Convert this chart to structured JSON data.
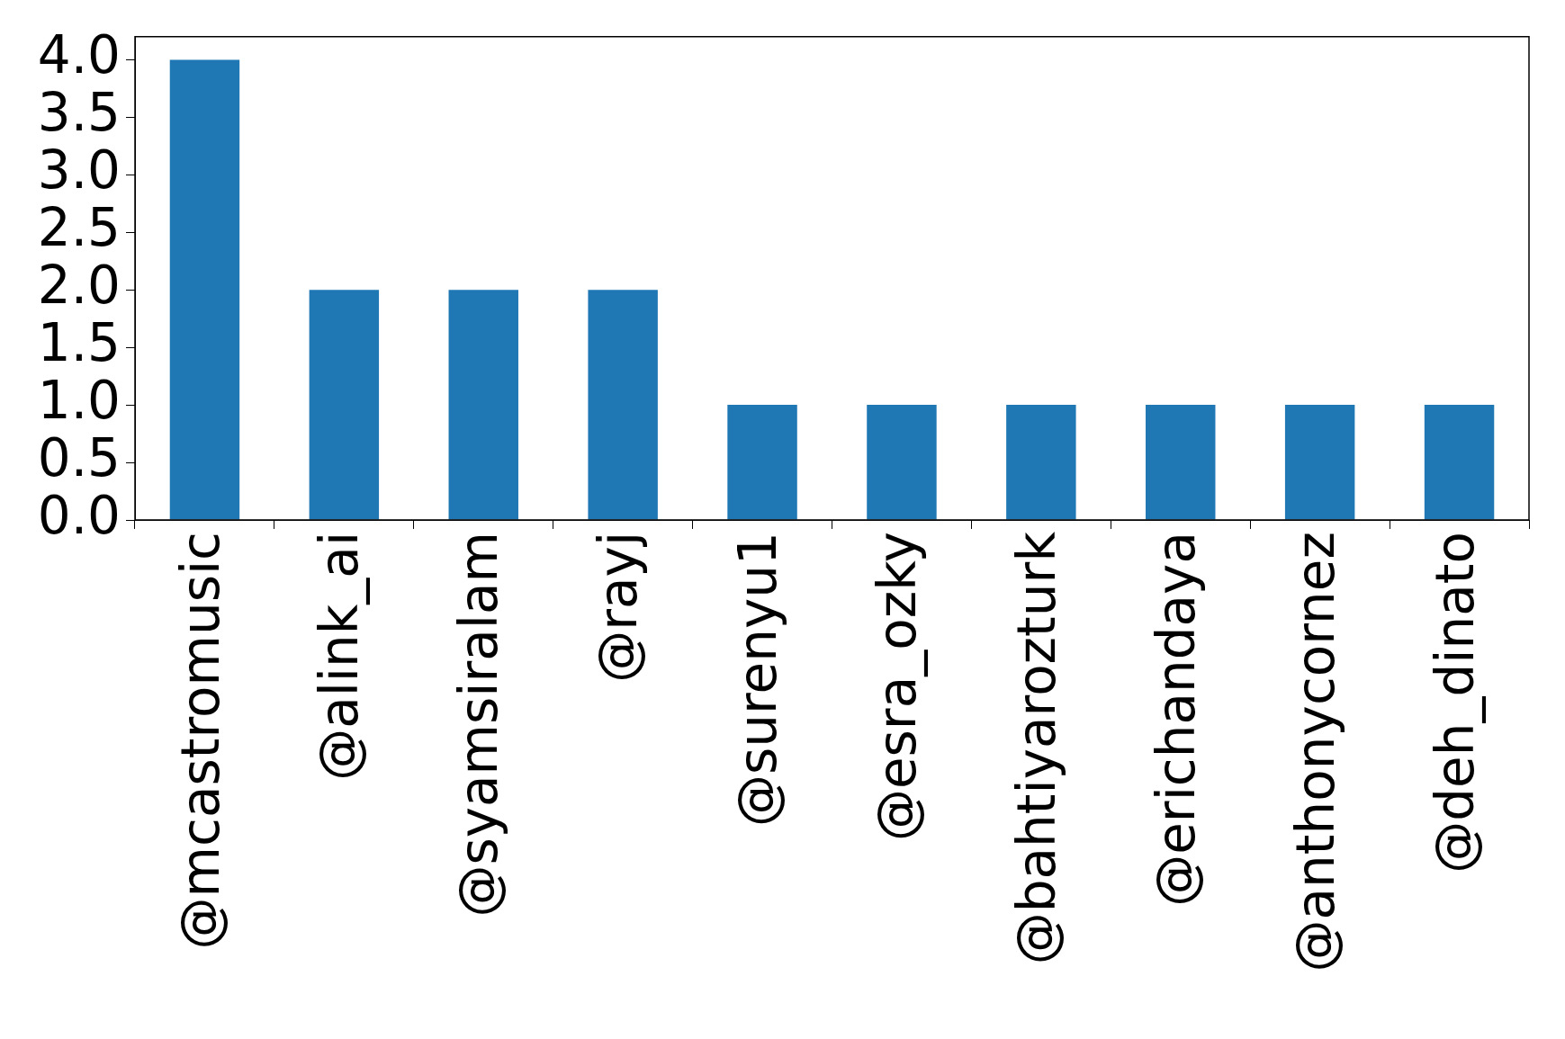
{
  "chart_data": {
    "type": "bar",
    "categories": [
      "@mcastromusic",
      "@alink_ai",
      "@syamsiralam",
      "@rayj",
      "@surenyu1",
      "@esra_ozky",
      "@bahtiyarozturk",
      "@erichandaya",
      "@anthonycornez",
      "@deh_dinato"
    ],
    "values": [
      4,
      2,
      2,
      2,
      1,
      1,
      1,
      1,
      1,
      1
    ],
    "color": "#1f77b4",
    "ylim": [
      0,
      4.2
    ],
    "yticks": [
      {
        "value": 0,
        "label": "0.0"
      },
      {
        "value": 0.5,
        "label": "0.5"
      },
      {
        "value": 1,
        "label": "1.0"
      },
      {
        "value": 1.5,
        "label": "1.5"
      },
      {
        "value": 2,
        "label": "2.0"
      },
      {
        "value": 2.5,
        "label": "2.5"
      },
      {
        "value": 3,
        "label": "3.0"
      },
      {
        "value": 3.5,
        "label": "3.5"
      },
      {
        "value": 4,
        "label": "4.0"
      }
    ],
    "grid": false,
    "legend": false
  }
}
